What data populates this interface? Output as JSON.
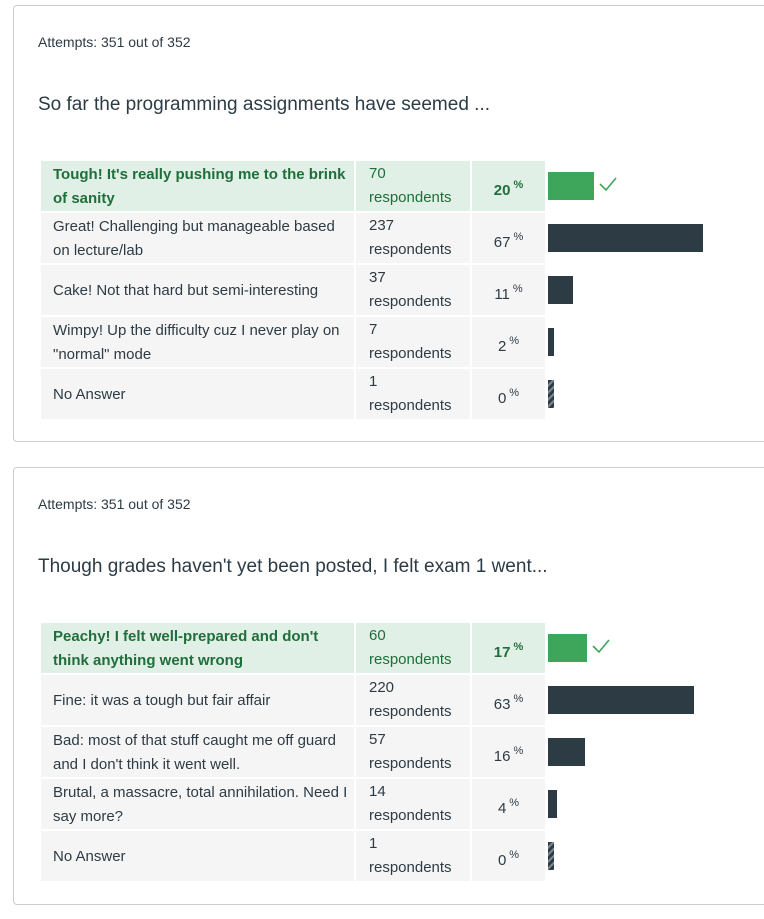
{
  "questions": [
    {
      "attempts": "Attempts: 351 out of 352",
      "question": "So far the programming assignments have seemed ...",
      "answers": [
        {
          "text": "Tough! It's really pushing me to the brink of sanity",
          "count": "70",
          "unit": "respondents",
          "percent": "20",
          "pct_sign": "%",
          "fraction": 0.2,
          "correct": true
        },
        {
          "text": "Great! Challenging but manageable based on lecture/lab",
          "count": "237",
          "unit": "respondents",
          "percent": "67",
          "pct_sign": "%",
          "fraction": 0.67,
          "correct": false
        },
        {
          "text": "Cake! Not that hard but semi-interesting",
          "count": "37",
          "unit": "respondents",
          "percent": "11",
          "pct_sign": "%",
          "fraction": 0.11,
          "correct": false
        },
        {
          "text": "Wimpy! Up the difficulty cuz I never play on \"normal\" mode",
          "count": "7",
          "unit": "respondents",
          "percent": "2",
          "pct_sign": "%",
          "fraction": 0.02,
          "correct": false
        },
        {
          "text": "No Answer",
          "count": "1",
          "unit": "respondents",
          "percent": "0",
          "pct_sign": "%",
          "fraction": 0.0,
          "correct": false
        }
      ]
    },
    {
      "attempts": "Attempts: 351 out of 352",
      "question": "Though grades haven't yet been posted, I felt exam 1 went...",
      "answers": [
        {
          "text": "Peachy! I felt well-prepared and don't think anything went wrong",
          "count": "60",
          "unit": "respondents",
          "percent": "17",
          "pct_sign": "%",
          "fraction": 0.17,
          "correct": true
        },
        {
          "text": "Fine: it was a tough but fair affair",
          "count": "220",
          "unit": "respondents",
          "percent": "63",
          "pct_sign": "%",
          "fraction": 0.63,
          "correct": false
        },
        {
          "text": "Bad: most of that stuff caught me off guard and I don't think it went well.",
          "count": "57",
          "unit": "respondents",
          "percent": "16",
          "pct_sign": "%",
          "fraction": 0.16,
          "correct": false
        },
        {
          "text": "Brutal, a massacre, total annihilation. Need I say more?",
          "count": "14",
          "unit": "respondents",
          "percent": "4",
          "pct_sign": "%",
          "fraction": 0.04,
          "correct": false
        },
        {
          "text": "No Answer",
          "count": "1",
          "unit": "respondents",
          "percent": "0",
          "pct_sign": "%",
          "fraction": 0.0,
          "correct": false
        }
      ]
    }
  ],
  "colors": {
    "correct": "#3da65b",
    "bar": "#2d3b45",
    "correct_bg": "#e1f0e6",
    "cell_bg": "#f5f5f5"
  },
  "icons": {
    "correct_marker": "checkmark-icon"
  }
}
